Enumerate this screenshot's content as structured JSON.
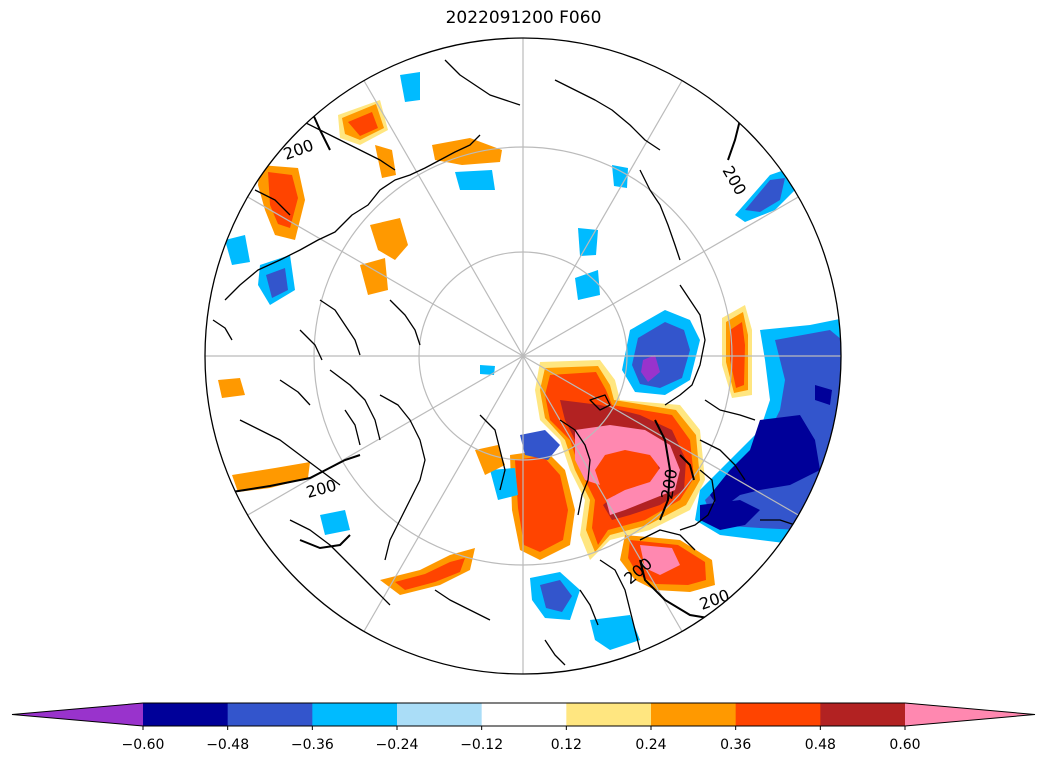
{
  "title": "2022091200 F060",
  "contour_label": "200",
  "colorbar": {
    "extend": "both",
    "levels": [
      -0.6,
      -0.48,
      -0.36,
      -0.24,
      -0.12,
      0.12,
      0.24,
      0.36,
      0.48,
      0.6
    ],
    "tick_labels": [
      "−0.60",
      "−0.48",
      "−0.36",
      "−0.24",
      "−0.12",
      "0.12",
      "0.24",
      "0.36",
      "0.48",
      "0.60"
    ],
    "colors": [
      "#9933cc",
      "#000099",
      "#3355cc",
      "#00bbff",
      "#aaddf7",
      "#ffffff",
      "#ffe680",
      "#ff9900",
      "#ff4400",
      "#b22222",
      "#ff88b0"
    ]
  },
  "map": {
    "projection": "north-polar-stereographic",
    "grid": true,
    "coastline_color": "#000000",
    "grid_color": "#bbbbbb"
  }
}
